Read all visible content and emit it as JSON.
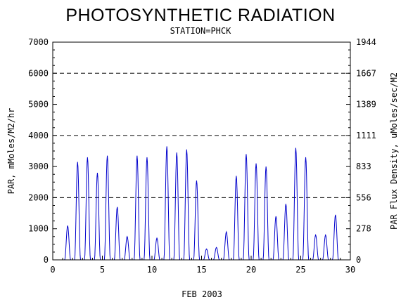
{
  "chart_data": {
    "type": "line",
    "title": "PHOTOSYNTHETIC RADIATION",
    "subtitle": "STATION=PHCK",
    "xlabel": "FEB 2003",
    "ylabel_left": "PAR, mMoles/M2/hr",
    "ylabel_right": "PAR Flux Density, uMoles/sec/M2",
    "xlim": [
      0,
      30
    ],
    "ylim": [
      0,
      7000
    ],
    "x_ticks": [
      "0",
      "5",
      "10",
      "15",
      "20",
      "25",
      "30"
    ],
    "y_ticks_left": [
      "0",
      "1000",
      "2000",
      "3000",
      "4000",
      "5000",
      "6000",
      "7000"
    ],
    "y_ticks_right": [
      "0",
      "278",
      "556",
      "833",
      "1111",
      "1389",
      "1667",
      "1944"
    ],
    "gridlines_y": [
      2000,
      4000,
      6000
    ],
    "line_color": "#0000cc",
    "series": [
      {
        "x": [
          1.5,
          2.5,
          3.5,
          4.5,
          5.5,
          6.5,
          7.5,
          8.5,
          9.5,
          10.5,
          11.5,
          12.5,
          13.5,
          14.5,
          15.5,
          16.5,
          17.5,
          18.5,
          19.5,
          20.5,
          21.5,
          22.5,
          23.5,
          24.5,
          25.5,
          26.5,
          27.5,
          28.5
        ],
        "y": [
          1100,
          3150,
          3300,
          2800,
          3350,
          1700,
          750,
          3350,
          3300,
          700,
          3650,
          3450,
          3550,
          2550,
          350,
          400,
          900,
          2700,
          3400,
          3100,
          3000,
          1400,
          1800,
          3600,
          3300,
          800,
          800,
          1450
        ]
      }
    ]
  }
}
